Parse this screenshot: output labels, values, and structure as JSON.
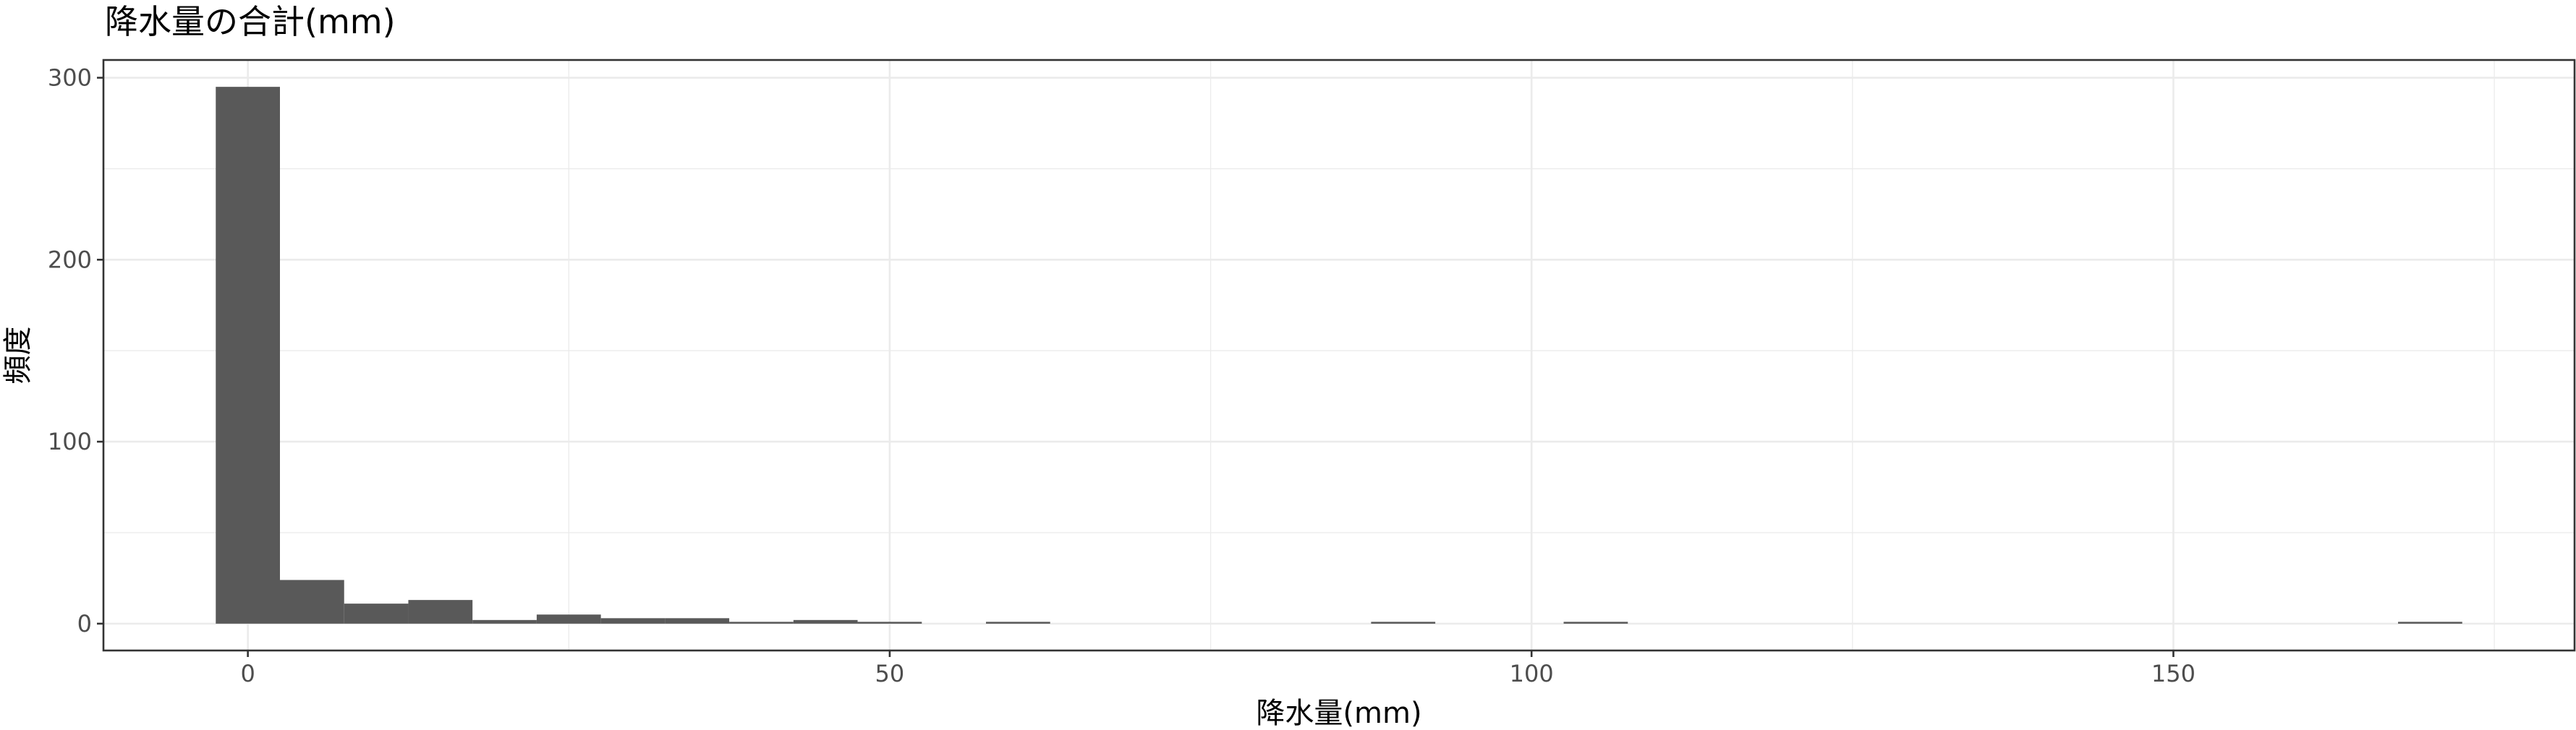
{
  "chart_data": {
    "type": "bar",
    "title": "降水量の合計(mm)",
    "xlabel": "降水量(mm)",
    "ylabel": "頻度",
    "xlim": [
      -11.25,
      181.25
    ],
    "ylim": [
      -14.75,
      309.75
    ],
    "x_ticks": [
      0,
      50,
      100,
      150
    ],
    "y_ticks": [
      0,
      100,
      200,
      300
    ],
    "grid": true,
    "legend": "none",
    "bar_color": "#595959",
    "bin_width": 5,
    "bins": [
      {
        "x0": -2.5,
        "x1": 2.5,
        "count": 295
      },
      {
        "x0": 2.5,
        "x1": 7.5,
        "count": 24
      },
      {
        "x0": 7.5,
        "x1": 12.5,
        "count": 11
      },
      {
        "x0": 12.5,
        "x1": 17.5,
        "count": 13
      },
      {
        "x0": 17.5,
        "x1": 22.5,
        "count": 2
      },
      {
        "x0": 22.5,
        "x1": 27.5,
        "count": 5
      },
      {
        "x0": 27.5,
        "x1": 32.5,
        "count": 3
      },
      {
        "x0": 32.5,
        "x1": 37.5,
        "count": 3
      },
      {
        "x0": 37.5,
        "x1": 42.5,
        "count": 1
      },
      {
        "x0": 42.5,
        "x1": 47.5,
        "count": 2
      },
      {
        "x0": 47.5,
        "x1": 52.5,
        "count": 1
      },
      {
        "x0": 52.5,
        "x1": 57.5,
        "count": 0
      },
      {
        "x0": 57.5,
        "x1": 62.5,
        "count": 1
      },
      {
        "x0": 62.5,
        "x1": 67.5,
        "count": 0
      },
      {
        "x0": 67.5,
        "x1": 72.5,
        "count": 0
      },
      {
        "x0": 72.5,
        "x1": 77.5,
        "count": 0
      },
      {
        "x0": 77.5,
        "x1": 82.5,
        "count": 0
      },
      {
        "x0": 82.5,
        "x1": 87.5,
        "count": 0
      },
      {
        "x0": 87.5,
        "x1": 92.5,
        "count": 1
      },
      {
        "x0": 92.5,
        "x1": 97.5,
        "count": 0
      },
      {
        "x0": 97.5,
        "x1": 102.5,
        "count": 0
      },
      {
        "x0": 102.5,
        "x1": 107.5,
        "count": 1
      },
      {
        "x0": 107.5,
        "x1": 112.5,
        "count": 0
      },
      {
        "x0": 112.5,
        "x1": 117.5,
        "count": 0
      },
      {
        "x0": 117.5,
        "x1": 122.5,
        "count": 0
      },
      {
        "x0": 122.5,
        "x1": 127.5,
        "count": 0
      },
      {
        "x0": 127.5,
        "x1": 132.5,
        "count": 0
      },
      {
        "x0": 132.5,
        "x1": 137.5,
        "count": 0
      },
      {
        "x0": 137.5,
        "x1": 142.5,
        "count": 0
      },
      {
        "x0": 142.5,
        "x1": 147.5,
        "count": 0
      },
      {
        "x0": 147.5,
        "x1": 152.5,
        "count": 0
      },
      {
        "x0": 152.5,
        "x1": 157.5,
        "count": 0
      },
      {
        "x0": 157.5,
        "x1": 162.5,
        "count": 0
      },
      {
        "x0": 162.5,
        "x1": 167.5,
        "count": 0
      },
      {
        "x0": 167.5,
        "x1": 172.5,
        "count": 1
      }
    ]
  }
}
